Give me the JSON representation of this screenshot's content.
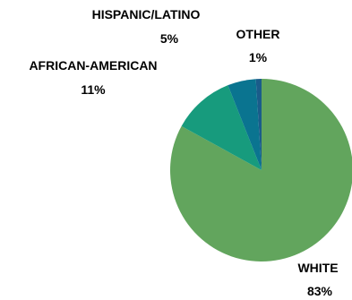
{
  "chart_data": {
    "type": "pie",
    "title": "",
    "slices": [
      {
        "name": "WHITE",
        "label": "83%",
        "value": 83,
        "color": "#62a55d"
      },
      {
        "name": "AFRICAN-AMERICAN",
        "label": "11%",
        "value": 11,
        "color": "#179b7d"
      },
      {
        "name": "HISPANIC/LATINO",
        "label": "5%",
        "value": 5,
        "color": "#0a7490"
      },
      {
        "name": "OTHER",
        "label": "1%",
        "value": 1,
        "color": "#1a5c8a"
      }
    ],
    "legend": "none"
  }
}
